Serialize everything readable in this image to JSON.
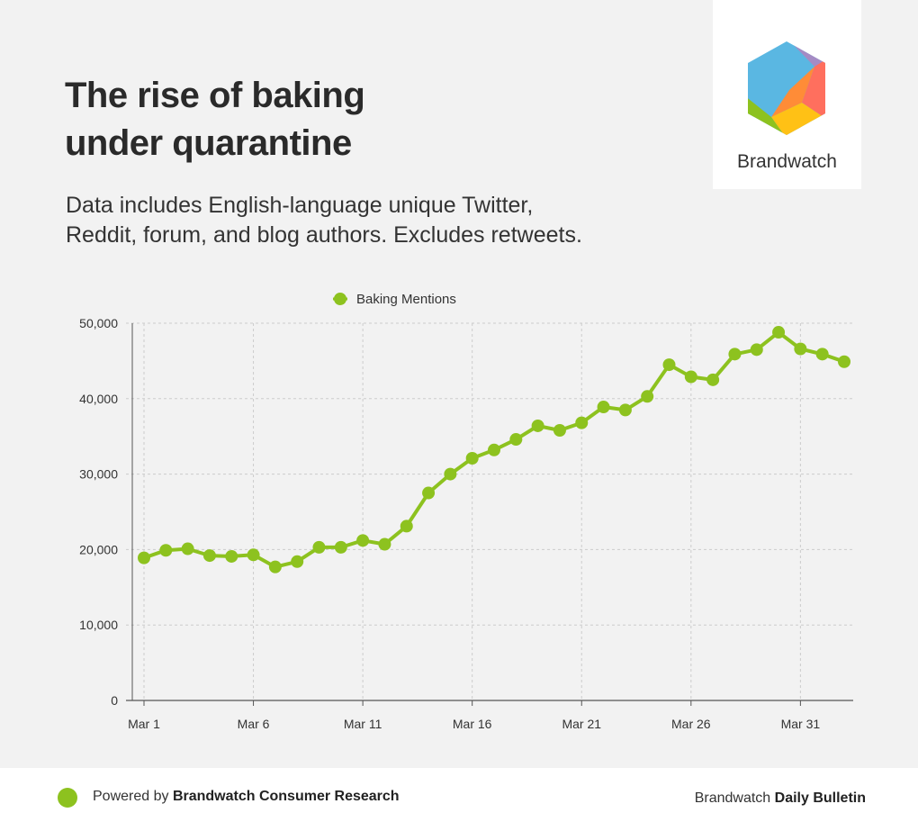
{
  "header": {
    "title_line1": "The rise of baking",
    "title_line2": "under quarantine",
    "subtitle_line1": "Data includes English-language unique Twitter,",
    "subtitle_line2": "Reddit, forum, and blog authors. Excludes retweets."
  },
  "logo": {
    "name": "Brandwatch"
  },
  "footer": {
    "left_prefix": "Powered by ",
    "left_brand": "Brandwatch Consumer Research",
    "right_prefix": "Brandwatch ",
    "right_brand": "Daily Bulletin"
  },
  "colors": {
    "series": "#8dc21f",
    "grid": "#cccccc",
    "axis": "#555555"
  },
  "chart_data": {
    "type": "line",
    "x": [
      "Mar 1",
      "Mar 2",
      "Mar 3",
      "Mar 4",
      "Mar 5",
      "Mar 6",
      "Mar 7",
      "Mar 8",
      "Mar 9",
      "Mar 10",
      "Mar 11",
      "Mar 12",
      "Mar 13",
      "Mar 14",
      "Mar 15",
      "Mar 16",
      "Mar 17",
      "Mar 18",
      "Mar 19",
      "Mar 20",
      "Mar 21",
      "Mar 22",
      "Mar 23",
      "Mar 24",
      "Mar 25",
      "Mar 26",
      "Mar 27",
      "Mar 28",
      "Mar 29",
      "Mar 30",
      "Mar 31",
      "Apr 1",
      "Apr 2"
    ],
    "x_ticks": [
      "Mar 1",
      "Mar 6",
      "Mar 11",
      "Mar 16",
      "Mar 21",
      "Mar 26",
      "Mar 31"
    ],
    "series": [
      {
        "name": "Baking Mentions",
        "values": [
          18900,
          19900,
          20100,
          19200,
          19100,
          19300,
          17700,
          18400,
          20300,
          20300,
          21200,
          20700,
          23100,
          27500,
          30000,
          32100,
          33200,
          34600,
          36400,
          35800,
          36800,
          38900,
          38500,
          40300,
          44500,
          42900,
          42500,
          45900,
          46500,
          48800,
          46600,
          45900,
          44900
        ]
      }
    ],
    "y_ticks": [
      0,
      10000,
      20000,
      30000,
      40000,
      50000
    ],
    "y_tick_labels": [
      "0",
      "10,000",
      "20,000",
      "30,000",
      "40,000",
      "50,000"
    ],
    "ylim": [
      0,
      50000
    ],
    "grid": true,
    "legend": "top-center"
  }
}
